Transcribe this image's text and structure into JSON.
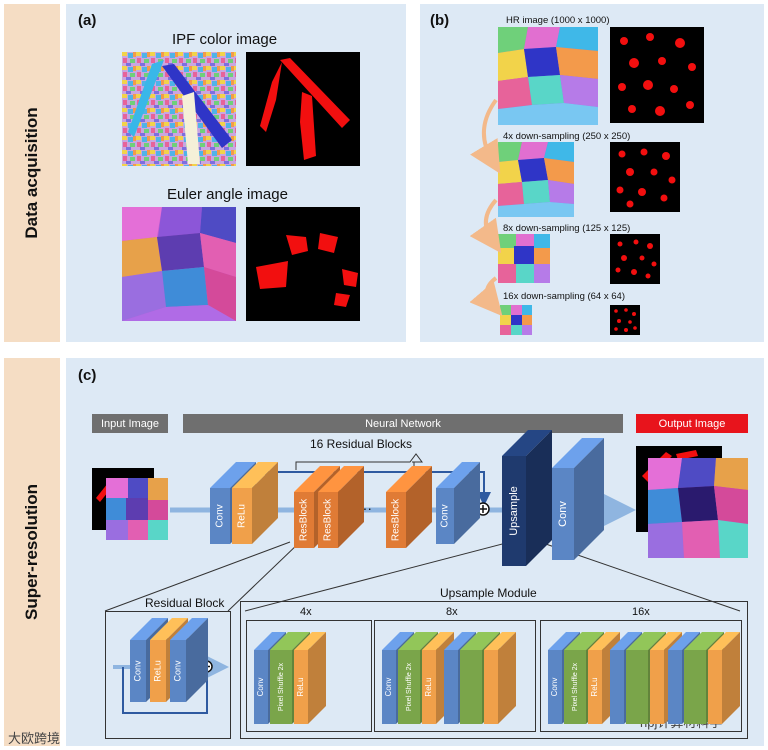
{
  "sidebar": {
    "data_acquisition": "Data acquisition",
    "super_resolution": "Super-resolution"
  },
  "panel_a": {
    "label": "(a)",
    "ipf_title": "IPF color image",
    "euler_title": "Euler angle image"
  },
  "panel_b": {
    "label": "(b)",
    "hr": "HR image (1000 x 1000)",
    "ds4": "4x down-sampling (250 x 250)",
    "ds8": "8x down-sampling (125 x 125)",
    "ds16": "16x down-sampling (64 x 64)"
  },
  "panel_c": {
    "label": "(c)",
    "input_image": "Input Image",
    "neural_network": "Neural Network",
    "output_image": "Output  Image",
    "residual_blocks": "16 Residual Blocks",
    "conv": "Conv",
    "relu": "ReLu",
    "resblock": "ResBlock",
    "dots": "···",
    "upsample": "Upsample",
    "residual_block_title": "Residual Block",
    "upsample_module_title": "Upsample Module",
    "pixel_shuffle": "Pixel Shuffle 2x",
    "factors": [
      "4x",
      "8x",
      "16x"
    ]
  },
  "watermark": {
    "left": "大欧跨境",
    "right": "npj计算材料学"
  },
  "colors": {
    "sidebar": "#f5ddc4",
    "panel": "#dde9f5",
    "conv": "#5b86c5",
    "relu": "#f0a04a",
    "resblock": "#e07b35",
    "upsample": "#1f3a6e",
    "pixel_shuffle": "#7aa54a",
    "output_bar": "#e8141c",
    "nn_bar": "#6f6f6f"
  }
}
